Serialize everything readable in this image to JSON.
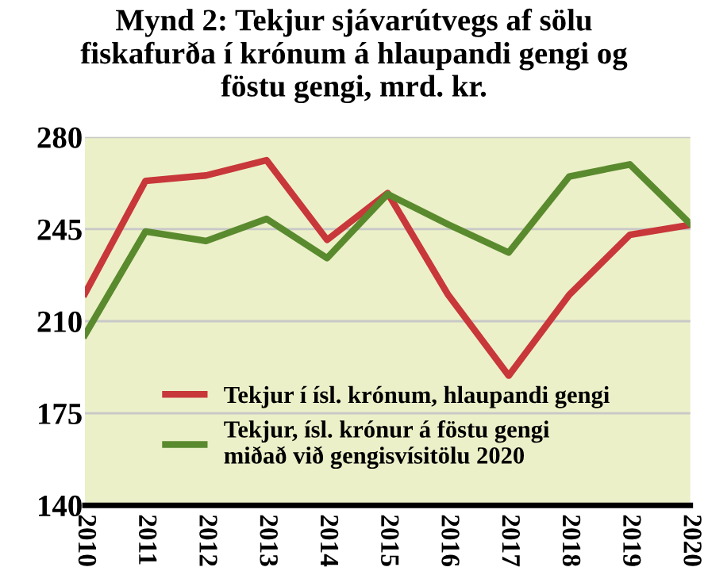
{
  "chart_data": {
    "type": "line",
    "title": "Mynd 2: Tekjur sjávarútvegs af sölu\nfiskafurða í krónum á hlaupandi gengi og\nföstu gengi, mrd. kr.",
    "categories": [
      "2010",
      "2011",
      "2012",
      "2013",
      "2014",
      "2015",
      "2016",
      "2017",
      "2018",
      "2019",
      "2020"
    ],
    "series": [
      {
        "name": "Tekjur í ísl. krónum, hlaupandi gengi",
        "color": "#c8373a",
        "values": [
          220.5,
          263.3,
          265.4,
          271.2,
          240.9,
          258.7,
          220,
          189.3,
          220,
          242.8,
          246.6
        ]
      },
      {
        "name": "Tekjur, ísl. krónur á föstu gengi\nmiðað við gengisvísitölu 2020",
        "color": "#5a8a2e",
        "values": [
          204.8,
          244.1,
          240.5,
          248.9,
          234,
          258.3,
          246.8,
          236.1,
          265,
          269.6,
          247
        ]
      }
    ],
    "ylim": [
      140,
      280
    ],
    "yticks": [
      140,
      175,
      210,
      245,
      280
    ],
    "grid": "y",
    "legend": "bottom",
    "marker": "none",
    "line_style": "solid"
  }
}
